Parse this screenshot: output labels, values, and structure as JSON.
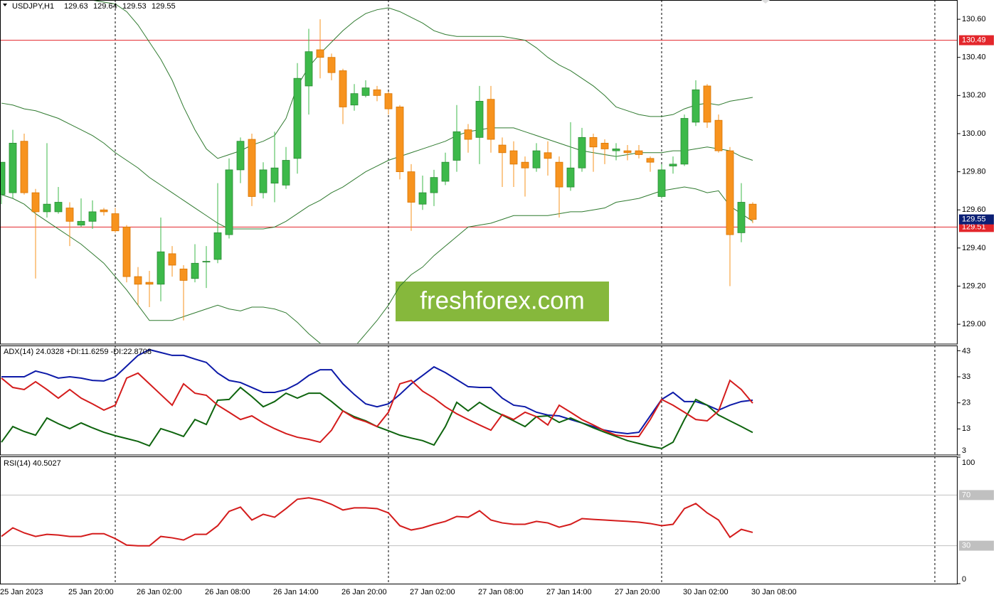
{
  "chart_data": [
    {
      "type": "candlestick",
      "title": "USDJPY,H1",
      "watermark": "freshforex.com",
      "categories": [
        "25 Jan 2023",
        null,
        null,
        null,
        null,
        null,
        "25 Jan 20:00",
        null,
        null,
        null,
        null,
        null,
        "26 Jan 02:00",
        null,
        null,
        null,
        null,
        null,
        "26 Jan 08:00",
        null,
        null,
        null,
        null,
        null,
        "26 Jan 14:00",
        null,
        null,
        null,
        null,
        null,
        "26 Jan 20:00",
        null,
        null,
        null,
        null,
        null,
        "27 Jan 02:00",
        null,
        null,
        null,
        null,
        null,
        "27 Jan 08:00",
        null,
        null,
        null,
        null,
        null,
        "27 Jan 14:00",
        null,
        null,
        null,
        null,
        null,
        "27 Jan 20:00",
        null,
        null,
        null,
        null,
        null,
        "30 Jan 02:00",
        null,
        null,
        null,
        null,
        null,
        "30 Jan 08:00"
      ],
      "open": [
        129.68,
        129.69,
        129.96,
        129.69,
        129.59,
        129.59,
        129.61,
        129.52,
        129.54,
        129.6,
        129.58,
        129.51,
        129.25,
        129.22,
        129.21,
        129.37,
        129.29,
        129.24,
        129.33,
        129.34,
        129.47,
        129.81,
        129.97,
        129.69,
        129.74,
        129.73,
        129.87,
        130.25,
        130.44,
        130.4,
        130.33,
        130.15,
        130.2,
        130.23,
        130.21,
        130.14,
        129.8,
        129.63,
        129.69,
        129.75,
        129.86,
        130.02,
        129.98,
        130.18,
        129.94,
        129.91,
        129.85,
        129.82,
        129.9,
        129.85,
        129.72,
        129.82,
        129.98,
        129.95,
        129.91,
        129.91,
        129.91,
        129.87,
        129.67,
        129.83,
        129.84,
        130.06,
        130.25,
        130.07,
        129.91,
        129.48,
        129.63
      ],
      "high": [
        129.85,
        130.02,
        130.0,
        129.71,
        129.95,
        129.72,
        129.64,
        129.66,
        129.65,
        129.61,
        129.61,
        129.52,
        129.3,
        129.28,
        129.56,
        129.41,
        129.31,
        129.42,
        129.41,
        129.74,
        129.87,
        129.98,
        130.0,
        129.85,
        130.01,
        129.93,
        130.37,
        130.55,
        130.6,
        130.42,
        130.34,
        130.26,
        130.28,
        130.25,
        130.22,
        130.15,
        129.84,
        129.78,
        129.81,
        129.9,
        130.15,
        130.05,
        130.25,
        130.25,
        129.98,
        129.96,
        129.88,
        129.95,
        129.96,
        129.88,
        130.06,
        130.03,
        130.0,
        129.97,
        129.95,
        129.94,
        129.94,
        129.88,
        129.84,
        129.88,
        130.1,
        130.28,
        130.26,
        130.1,
        129.93,
        129.74,
        129.64
      ],
      "low": [
        129.63,
        129.66,
        129.68,
        129.24,
        129.56,
        129.58,
        129.41,
        129.51,
        129.5,
        129.57,
        129.48,
        129.22,
        129.1,
        129.09,
        129.12,
        129.25,
        129.02,
        129.22,
        129.19,
        129.32,
        129.45,
        129.74,
        129.62,
        129.66,
        129.64,
        129.71,
        129.79,
        130.1,
        130.29,
        130.28,
        130.05,
        130.12,
        130.19,
        130.17,
        130.1,
        129.76,
        129.49,
        129.6,
        129.62,
        129.73,
        129.8,
        129.9,
        129.84,
        129.9,
        129.72,
        129.72,
        129.67,
        129.8,
        129.78,
        129.56,
        129.7,
        129.8,
        129.8,
        129.84,
        129.86,
        129.86,
        129.87,
        129.8,
        129.66,
        129.79,
        129.83,
        130.04,
        130.03,
        129.9,
        129.2,
        129.43,
        129.53
      ],
      "close": [
        129.85,
        129.95,
        129.69,
        129.59,
        129.63,
        129.64,
        129.54,
        129.54,
        129.59,
        129.59,
        129.49,
        129.25,
        129.21,
        129.21,
        129.38,
        129.31,
        129.23,
        129.32,
        129.33,
        129.48,
        129.81,
        129.96,
        129.67,
        129.81,
        129.82,
        129.86,
        130.29,
        130.43,
        130.4,
        130.32,
        130.14,
        130.21,
        130.24,
        130.2,
        130.13,
        129.8,
        129.64,
        129.69,
        129.77,
        129.85,
        130.01,
        129.97,
        130.17,
        129.97,
        129.9,
        129.84,
        129.82,
        129.91,
        129.87,
        129.72,
        129.82,
        129.98,
        129.93,
        129.92,
        129.92,
        129.9,
        129.89,
        129.85,
        129.81,
        129.84,
        130.08,
        130.23,
        130.06,
        129.91,
        129.47,
        129.64,
        129.55
      ],
      "up_color": "#3db94a",
      "down_color": "#f7931e",
      "last_price_color": "#0b1f75",
      "bands": {
        "color": "#2f7a2f",
        "upper": [
          130.72,
          130.72,
          130.72,
          130.72,
          130.71,
          130.71,
          130.7,
          130.7,
          130.7,
          130.69,
          130.68,
          130.64,
          130.57,
          130.48,
          130.39,
          130.28,
          130.14,
          130.02,
          129.92,
          129.87,
          129.89,
          129.91,
          129.94,
          129.96,
          129.99,
          130.08,
          130.25,
          130.35,
          130.42,
          130.48,
          130.54,
          130.59,
          130.63,
          130.65,
          130.66,
          130.64,
          130.61,
          130.58,
          130.54,
          130.52,
          130.51,
          130.51,
          130.51,
          130.51,
          130.51,
          130.5,
          130.49,
          130.45,
          130.4,
          130.36,
          130.33,
          130.29,
          130.25,
          130.2,
          130.14,
          130.12,
          130.1,
          130.09,
          130.09,
          130.1,
          130.13,
          130.15,
          130.16,
          130.15,
          130.17,
          130.18,
          130.19
        ],
        "middle": [
          130.16,
          130.15,
          130.13,
          130.12,
          130.1,
          130.08,
          130.05,
          130.02,
          129.99,
          129.95,
          129.9,
          129.86,
          129.82,
          129.77,
          129.73,
          129.69,
          129.65,
          129.61,
          129.57,
          129.53,
          129.5,
          129.5,
          129.5,
          129.5,
          129.51,
          129.54,
          129.58,
          129.62,
          129.65,
          129.69,
          129.72,
          129.76,
          129.8,
          129.83,
          129.86,
          129.88,
          129.9,
          129.92,
          129.94,
          129.96,
          129.99,
          130.01,
          130.02,
          130.03,
          130.03,
          130.03,
          130.01,
          129.99,
          129.97,
          129.95,
          129.93,
          129.91,
          129.9,
          129.89,
          129.88,
          129.89,
          129.9,
          129.9,
          129.9,
          129.91,
          129.91,
          129.92,
          129.93,
          129.92,
          129.91,
          129.88,
          129.86
        ],
        "lower": [
          129.68,
          129.66,
          129.63,
          129.58,
          129.54,
          129.5,
          129.46,
          129.42,
          129.37,
          129.32,
          129.25,
          129.18,
          129.1,
          129.02,
          129.02,
          129.02,
          129.04,
          129.06,
          129.08,
          129.1,
          129.08,
          129.07,
          129.09,
          129.09,
          129.08,
          129.06,
          129.01,
          128.95,
          128.9,
          128.87,
          128.86,
          128.88,
          128.95,
          129.02,
          129.1,
          129.2,
          129.26,
          129.3,
          129.36,
          129.41,
          129.46,
          129.51,
          129.52,
          129.53,
          129.55,
          129.57,
          129.57,
          129.57,
          129.57,
          129.58,
          129.59,
          129.59,
          129.6,
          129.61,
          129.64,
          129.65,
          129.66,
          129.68,
          129.7,
          129.71,
          129.72,
          129.71,
          129.69,
          129.7,
          129.62,
          129.58,
          129.54
        ]
      },
      "levels": [
        {
          "value": 130.49,
          "color": "#e3262b"
        },
        {
          "value": 129.51,
          "color": "#e3262b"
        }
      ],
      "ylim": [
        128.896,
        130.701
      ],
      "yticks": [
        {
          "value": 129,
          "label": "129.00"
        },
        {
          "value": 129.2,
          "label": "129.20"
        },
        {
          "value": 129.4,
          "label": "129.40"
        },
        {
          "value": 129.6,
          "label": "129.60"
        },
        {
          "value": 129.8,
          "label": "129.80"
        },
        {
          "value": 130,
          "label": "130.00"
        },
        {
          "value": 130.2,
          "label": "130.20"
        },
        {
          "value": 130.4,
          "label": "130.40"
        },
        {
          "value": 130.6,
          "label": "130.60"
        }
      ]
    },
    {
      "type": "line",
      "title": "ADX(14) 24.0328 +DI:11.6259 -DI:22.8708",
      "series": [
        {
          "color": "#0d1aa8",
          "values": [
            33.0,
            33.0,
            33.0,
            35.2,
            34.1,
            32.5,
            33.0,
            32.5,
            31.6,
            31.4,
            33.0,
            37.1,
            41.2,
            43.4,
            42.3,
            41.2,
            41.2,
            39.8,
            38.5,
            34.4,
            31.6,
            30.8,
            28.9,
            27.0,
            27.0,
            28.1,
            30.3,
            33.5,
            35.7,
            35.7,
            30.3,
            26.2,
            22.6,
            21.5,
            22.6,
            26.2,
            30.3,
            33.5,
            36.8,
            34.6,
            31.9,
            29.2,
            28.9,
            28.9,
            24.8,
            22.1,
            21.5,
            19.4,
            18.3,
            18.0,
            16.6,
            15.3,
            13.9,
            12.5,
            11.7,
            11.2,
            11.7,
            18.0,
            24.3,
            27.0,
            23.5,
            23.5,
            22.1,
            20.2,
            22.1,
            23.5,
            24.03
          ]
        },
        {
          "color": "#0e640e",
          "values": [
            7.9,
            13.9,
            12.0,
            10.6,
            17.2,
            15.0,
            13.1,
            15.3,
            13.4,
            11.7,
            10.4,
            9.3,
            8.2,
            6.5,
            13.1,
            11.7,
            10.1,
            16.6,
            14.7,
            24.0,
            24.3,
            28.9,
            25.4,
            21.5,
            23.5,
            26.7,
            24.8,
            26.7,
            26.7,
            23.5,
            19.9,
            17.7,
            16.1,
            13.9,
            12.3,
            10.6,
            9.5,
            8.5,
            6.8,
            13.9,
            23.2,
            19.9,
            23.2,
            20.5,
            18.3,
            16.1,
            13.9,
            17.7,
            18.0,
            15.5,
            17.2,
            15.3,
            13.4,
            11.7,
            10.1,
            8.5,
            7.4,
            6.3,
            5.5,
            7.9,
            16.6,
            24.3,
            22.1,
            18.3,
            16.1,
            13.9,
            11.63
          ]
        },
        {
          "color": "#d41c1c",
          "values": [
            32.5,
            28.9,
            28.1,
            31.1,
            28.1,
            24.8,
            28.1,
            24.8,
            22.6,
            20.2,
            22.1,
            32.5,
            34.4,
            30.3,
            26.2,
            22.1,
            30.3,
            26.7,
            25.9,
            22.1,
            19.4,
            16.6,
            18.0,
            15.3,
            13.1,
            11.2,
            9.8,
            9.0,
            7.9,
            12.5,
            19.9,
            17.2,
            15.8,
            13.9,
            19.4,
            30.3,
            31.6,
            27.5,
            24.8,
            21.5,
            18.8,
            16.6,
            14.5,
            12.5,
            18.5,
            16.6,
            19.4,
            17.7,
            14.5,
            22.1,
            19.4,
            16.6,
            14.5,
            12.3,
            10.6,
            10.1,
            10.1,
            16.6,
            24.3,
            22.1,
            19.4,
            16.6,
            16.1,
            19.9,
            31.6,
            28.1,
            22.87
          ]
        }
      ],
      "ylim": [
        3,
        45
      ],
      "yticks": [
        43,
        33,
        23,
        13,
        3
      ]
    },
    {
      "type": "line",
      "title": "RSI(14) 40.5027",
      "series": [
        {
          "color": "#d41c1c",
          "values": [
            37.3,
            44.1,
            40.1,
            37.3,
            39.0,
            38.4,
            37.3,
            37.3,
            39.5,
            39.5,
            35.6,
            30.5,
            29.9,
            29.9,
            37.3,
            36.2,
            34.5,
            39.0,
            39.0,
            45.8,
            57.1,
            60.5,
            50.3,
            54.8,
            52.5,
            59.3,
            66.7,
            67.8,
            66.1,
            62.7,
            58.2,
            59.9,
            59.9,
            59.3,
            55.9,
            45.8,
            42.4,
            44.1,
            46.9,
            49.2,
            53.1,
            52.5,
            57.6,
            50.3,
            48.0,
            46.9,
            46.9,
            49.2,
            48.0,
            44.6,
            46.9,
            51.4,
            50.8,
            50.3,
            49.7,
            49.2,
            48.6,
            47.5,
            45.8,
            46.9,
            59.3,
            63.3,
            55.9,
            50.3,
            36.7,
            42.9,
            40.5
          ]
        }
      ],
      "levels": [
        {
          "value": 70,
          "color": "#c0c0c0"
        },
        {
          "value": 30,
          "color": "#c0c0c0"
        }
      ],
      "ylim": [
        0,
        100
      ],
      "yticks": [
        100,
        0
      ]
    }
  ]
}
